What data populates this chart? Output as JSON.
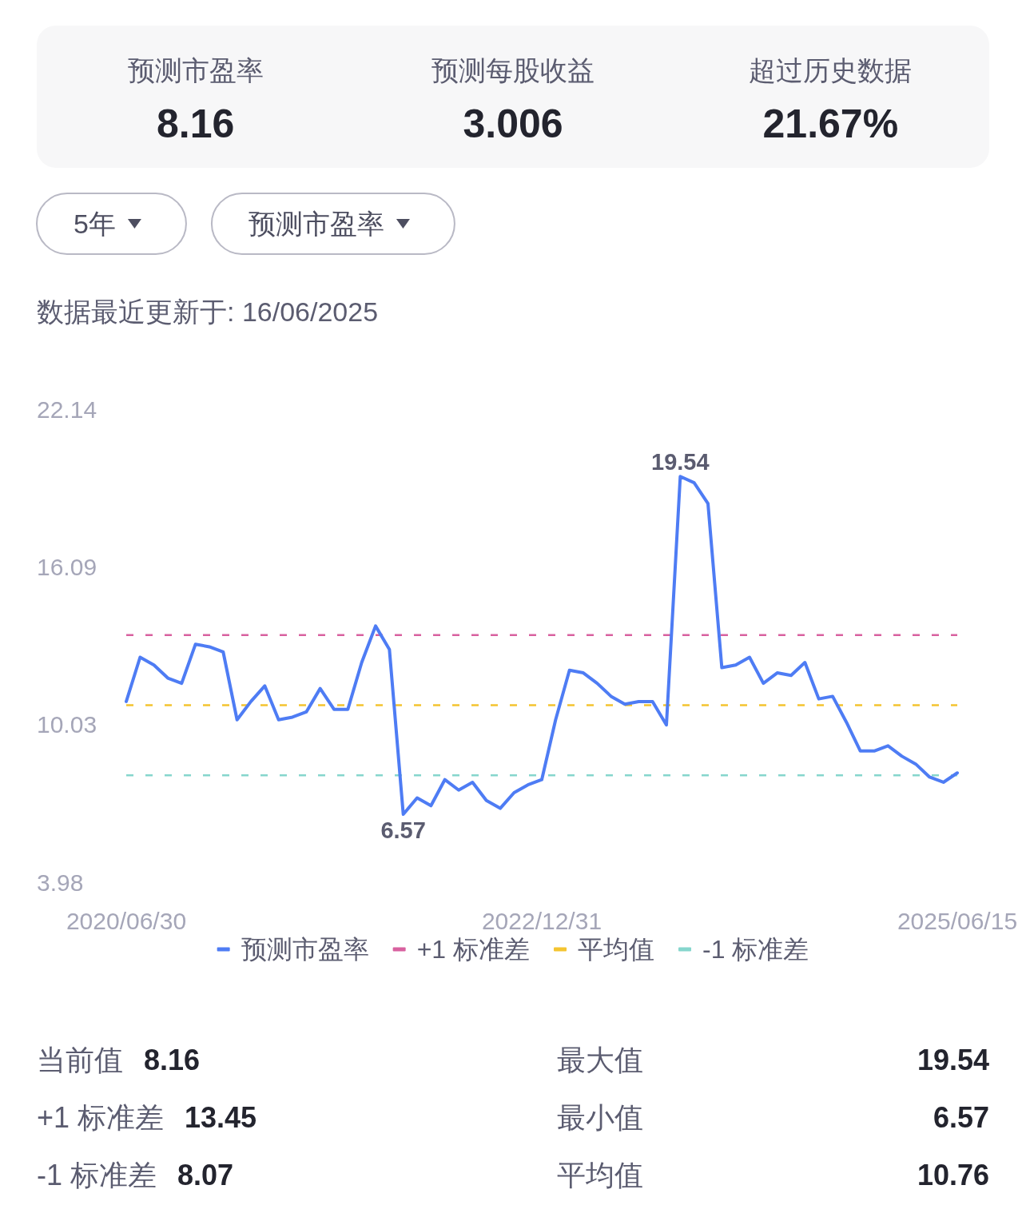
{
  "chart_data": [
    {
      "type": "other",
      "categories": [
        "预测市盈率",
        "预测每股收益",
        "超过历史数据"
      ],
      "value_labels": [
        "8.16",
        "3.006",
        "21.67%"
      ]
    },
    {
      "type": "line",
      "subtitle": "数据最近更新于: 16/06/2025",
      "annotations": [
        "5年",
        "预测市盈率"
      ],
      "categories": [
        "2020/06/30",
        null,
        null,
        null,
        null,
        null,
        null,
        null,
        null,
        null,
        null,
        null,
        null,
        null,
        null,
        null,
        null,
        null,
        null,
        null,
        null,
        null,
        null,
        null,
        null,
        null,
        null,
        null,
        null,
        null,
        "2022/12/31",
        null,
        null,
        null,
        null,
        null,
        null,
        null,
        null,
        null,
        null,
        null,
        null,
        null,
        null,
        null,
        null,
        null,
        null,
        null,
        null,
        null,
        null,
        null,
        null,
        null,
        null,
        null,
        null,
        null,
        "2025/06/15"
      ],
      "ylim": [
        3.98,
        22.14
      ],
      "yticks": [
        3.98,
        10.03,
        16.09,
        22.14
      ],
      "series": [
        {
          "name": "预测市盈率",
          "color": "#4e7cf4",
          "values": [
            10.9,
            12.6,
            12.3,
            11.8,
            11.6,
            13.1,
            13.0,
            12.8,
            10.2,
            10.9,
            11.5,
            10.2,
            10.3,
            10.5,
            11.4,
            10.6,
            10.6,
            12.4,
            13.8,
            12.9,
            6.57,
            7.2,
            6.9,
            7.9,
            7.5,
            7.8,
            7.1,
            6.8,
            7.4,
            7.7,
            7.9,
            10.2,
            12.1,
            12.0,
            11.6,
            11.1,
            10.8,
            10.9,
            10.9,
            10.0,
            19.54,
            19.3,
            18.5,
            12.2,
            12.3,
            12.6,
            11.6,
            12.0,
            11.9,
            12.4,
            11.0,
            11.1,
            10.1,
            9.0,
            9.0,
            9.2,
            8.8,
            8.5,
            8.0,
            7.8,
            8.16
          ],
          "value_labels": [
            null,
            null,
            null,
            null,
            null,
            null,
            null,
            null,
            null,
            null,
            null,
            null,
            null,
            null,
            null,
            null,
            null,
            null,
            null,
            null,
            "6.57",
            null,
            null,
            null,
            null,
            null,
            null,
            null,
            null,
            null,
            null,
            null,
            null,
            null,
            null,
            null,
            null,
            null,
            null,
            null,
            "19.54",
            null,
            null,
            null,
            null,
            null,
            null,
            null,
            null,
            null,
            null,
            null,
            null,
            null,
            null,
            null,
            null,
            null,
            null,
            null,
            null
          ]
        }
      ],
      "ref_lines": [
        {
          "axis": "y",
          "value": 13.45,
          "label": "+1 标准差",
          "color": "#d8619f",
          "line_style": "dashed"
        },
        {
          "axis": "y",
          "value": 10.76,
          "label": "平均值",
          "color": "#f4c430",
          "line_style": "dashed"
        },
        {
          "axis": "y",
          "value": 8.07,
          "label": "-1 标准差",
          "color": "#86d6cd",
          "line_style": "dashed"
        }
      ],
      "legend": "bottom"
    },
    {
      "type": "other",
      "categories": [
        "当前值",
        "最大值",
        "+1 标准差",
        "最小值",
        "-1 标准差",
        "平均值"
      ],
      "values": [
        8.16,
        19.54,
        13.45,
        6.57,
        8.07,
        10.76
      ],
      "data_labels": true
    }
  ]
}
